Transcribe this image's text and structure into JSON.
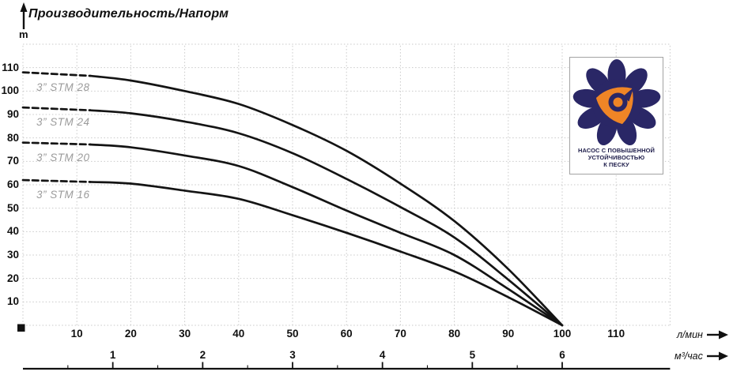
{
  "title": "Производительность/Напорм",
  "y_axis_unit": "m",
  "flow_axis_label": "л/мин",
  "volume_axis_label": "м³/час",
  "badge": {
    "lines": [
      "НАСОС С ПОВЫШЕННОЙ",
      "УСТОЙЧИВОСТЬЮ",
      "К ПЕСКУ"
    ]
  },
  "colors": {
    "curve": "#141414",
    "grid": "#c9c9c9",
    "curve_label": "#9b9b9b",
    "badge_navy": "#2a2766",
    "badge_orange": "#ef8526",
    "badge_text": "#1d1c4a"
  },
  "chart_data": {
    "type": "line",
    "title": "Производительность/Напорм",
    "ylabel": "m",
    "xlabel_primary": "л/мин",
    "xlabel_secondary": "м³/час",
    "xlim_l_min": [
      0,
      120
    ],
    "ylim_m": [
      0,
      120
    ],
    "grid": true,
    "y_ticks_m": [
      10,
      20,
      30,
      40,
      50,
      60,
      70,
      80,
      90,
      100,
      110
    ],
    "x_ticks_l_min": [
      10,
      20,
      30,
      40,
      50,
      60,
      70,
      80,
      90,
      100,
      110
    ],
    "x_ticks_m3_h": [
      1,
      2,
      3,
      4,
      5,
      6
    ],
    "l_min_per_m3_h": 16.667,
    "legend_position": "inline-left",
    "series": [
      {
        "name": "3” STM 28",
        "dashed_until_l_min": 12.5,
        "points_l_min_m": [
          [
            0,
            108
          ],
          [
            12.5,
            106.5
          ],
          [
            20,
            104.5
          ],
          [
            30,
            100
          ],
          [
            40,
            94.5
          ],
          [
            50,
            85.5
          ],
          [
            60,
            74.5
          ],
          [
            70,
            60.5
          ],
          [
            80,
            44.5
          ],
          [
            90,
            24
          ],
          [
            100,
            0
          ]
        ]
      },
      {
        "name": "3” STM 24",
        "dashed_until_l_min": 12.5,
        "points_l_min_m": [
          [
            0,
            93
          ],
          [
            12.5,
            91.8
          ],
          [
            20,
            90.5
          ],
          [
            30,
            87
          ],
          [
            40,
            82
          ],
          [
            50,
            73.5
          ],
          [
            60,
            62.5
          ],
          [
            70,
            50.5
          ],
          [
            80,
            37.5
          ],
          [
            90,
            19.5
          ],
          [
            100,
            0
          ]
        ]
      },
      {
        "name": "3” STM 20",
        "dashed_until_l_min": 12.5,
        "points_l_min_m": [
          [
            0,
            78
          ],
          [
            12.5,
            77.2
          ],
          [
            20,
            76
          ],
          [
            30,
            72.5
          ],
          [
            40,
            68
          ],
          [
            50,
            59
          ],
          [
            60,
            49
          ],
          [
            70,
            39.5
          ],
          [
            80,
            30
          ],
          [
            90,
            15.5
          ],
          [
            100,
            0
          ]
        ]
      },
      {
        "name": "3” STM 16",
        "dashed_until_l_min": 12.5,
        "points_l_min_m": [
          [
            0,
            62
          ],
          [
            12.5,
            61.2
          ],
          [
            20,
            60.5
          ],
          [
            30,
            57.5
          ],
          [
            40,
            54
          ],
          [
            50,
            47
          ],
          [
            60,
            39.5
          ],
          [
            70,
            31.5
          ],
          [
            80,
            23
          ],
          [
            90,
            12
          ],
          [
            100,
            0
          ]
        ]
      }
    ]
  }
}
